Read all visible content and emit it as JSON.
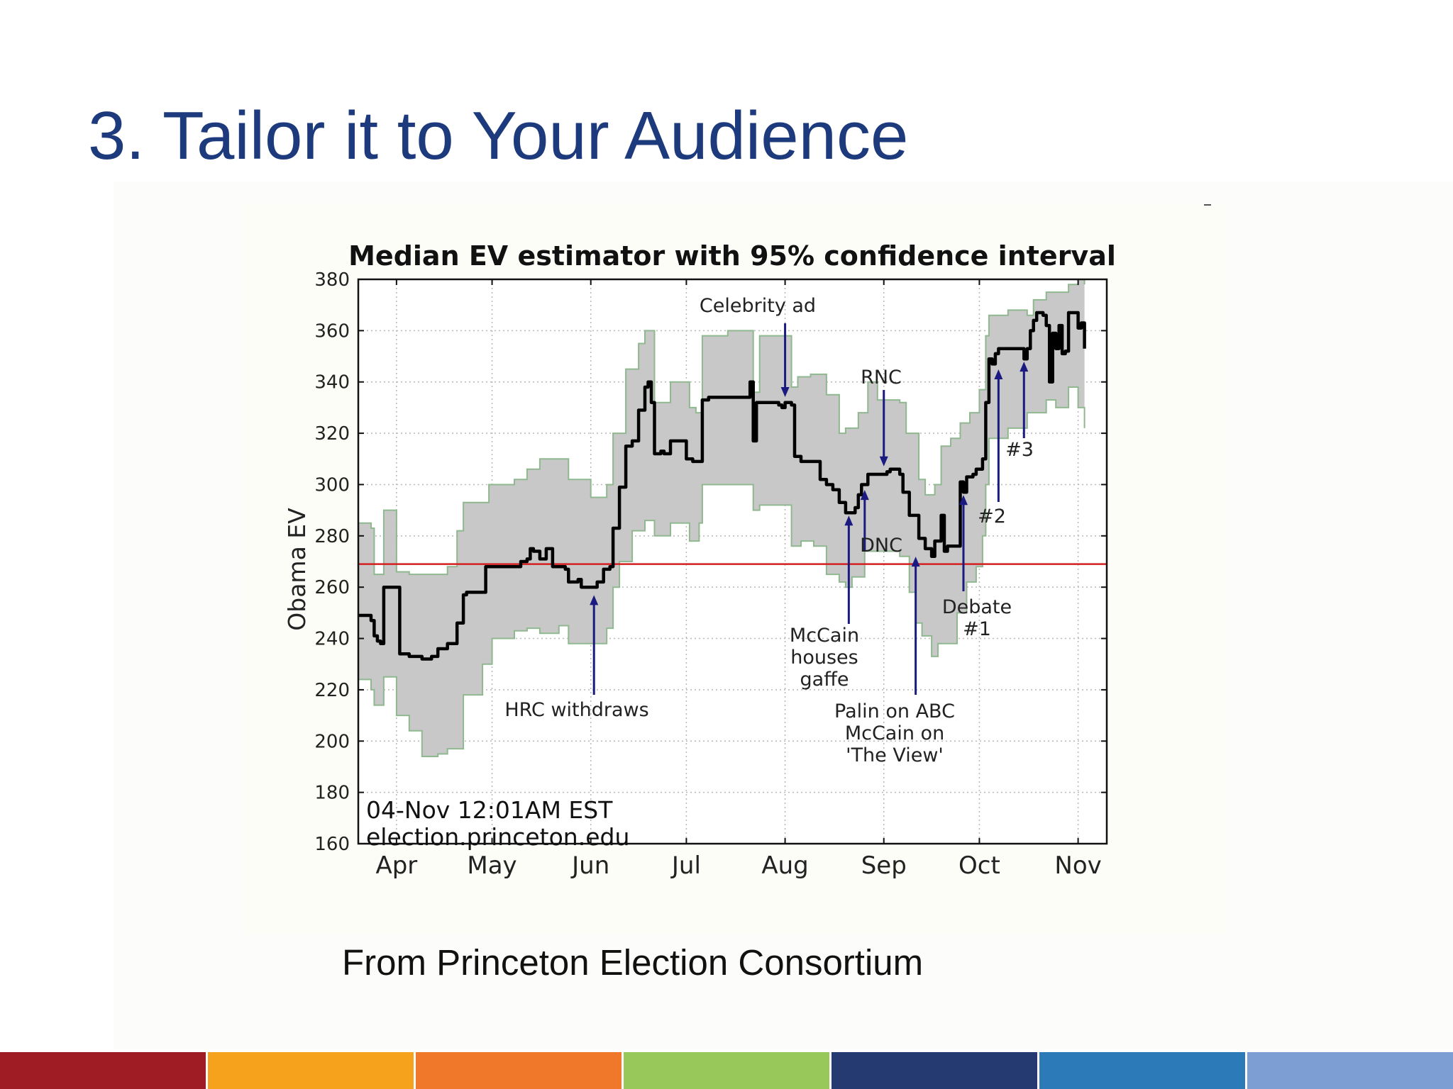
{
  "slide": {
    "title": "3. Tailor it to Your Audience",
    "caption": "From Princeton Election Consortium",
    "footer_colors": [
      "#a01c24",
      "#f6a21c",
      "#f0782a",
      "#98c85a",
      "#263a72",
      "#2c7ab8",
      "#7c9ed2"
    ]
  },
  "chart_data": {
    "type": "line",
    "title": "Median EV estimator with 95% confidence interval",
    "xlabel": "",
    "ylabel": "Obama EV",
    "x_unit": "date (2008)",
    "xlim": [
      "03-20",
      "11-10"
    ],
    "ylim": [
      160,
      380
    ],
    "yticks": [
      160,
      180,
      200,
      220,
      240,
      260,
      280,
      300,
      320,
      340,
      360,
      380
    ],
    "xticks": [
      {
        "date": "04-01",
        "label": "Apr"
      },
      {
        "date": "05-01",
        "label": "May"
      },
      {
        "date": "06-01",
        "label": "Jun"
      },
      {
        "date": "07-01",
        "label": "Jul"
      },
      {
        "date": "08-01",
        "label": "Aug"
      },
      {
        "date": "09-01",
        "label": "Sep"
      },
      {
        "date": "10-01",
        "label": "Oct"
      },
      {
        "date": "11-01",
        "label": "Nov"
      }
    ],
    "grid": true,
    "reference_line": {
      "y": 269,
      "color": "#d42020"
    },
    "colors": {
      "median": "#000000",
      "band_fill": "#c8c8c8",
      "band_edge": "#90b890",
      "arrows": "#1a1a80"
    },
    "median": [
      [
        "03-20",
        249
      ],
      [
        "03-24",
        247
      ],
      [
        "03-25",
        241
      ],
      [
        "03-26",
        239
      ],
      [
        "03-27",
        238
      ],
      [
        "03-28",
        260
      ],
      [
        "04-01",
        260
      ],
      [
        "04-02",
        234
      ],
      [
        "04-05",
        233
      ],
      [
        "04-09",
        232
      ],
      [
        "04-12",
        233
      ],
      [
        "04-14",
        236
      ],
      [
        "04-17",
        238
      ],
      [
        "04-20",
        246
      ],
      [
        "04-22",
        257
      ],
      [
        "04-23",
        258
      ],
      [
        "04-28",
        258
      ],
      [
        "04-29",
        268
      ],
      [
        "05-06",
        268
      ],
      [
        "05-08",
        268
      ],
      [
        "05-10",
        270
      ],
      [
        "05-12",
        271
      ],
      [
        "05-13",
        275
      ],
      [
        "05-14",
        274
      ],
      [
        "05-16",
        271
      ],
      [
        "05-18",
        275
      ],
      [
        "05-19",
        275
      ],
      [
        "05-20",
        268
      ],
      [
        "05-24",
        267
      ],
      [
        "05-25",
        262
      ],
      [
        "05-28",
        263
      ],
      [
        "05-29",
        260
      ],
      [
        "06-01",
        260
      ],
      [
        "06-03",
        262
      ],
      [
        "06-05",
        267
      ],
      [
        "06-07",
        268
      ],
      [
        "06-08",
        283
      ],
      [
        "06-10",
        299
      ],
      [
        "06-12",
        315
      ],
      [
        "06-14",
        317
      ],
      [
        "06-16",
        329
      ],
      [
        "06-18",
        338
      ],
      [
        "06-19",
        340
      ],
      [
        "06-20",
        332
      ],
      [
        "06-21",
        312
      ],
      [
        "06-23",
        313
      ],
      [
        "06-24",
        312
      ],
      [
        "06-26",
        317
      ],
      [
        "06-30",
        317
      ],
      [
        "07-01",
        310
      ],
      [
        "07-03",
        309
      ],
      [
        "07-05",
        309
      ],
      [
        "07-06",
        333
      ],
      [
        "07-08",
        334
      ],
      [
        "07-16",
        334
      ],
      [
        "07-20",
        334
      ],
      [
        "07-21",
        340
      ],
      [
        "07-22",
        317
      ],
      [
        "07-23",
        332
      ],
      [
        "07-28",
        332
      ],
      [
        "07-30",
        331
      ],
      [
        "07-31",
        330
      ],
      [
        "08-01",
        332
      ],
      [
        "08-03",
        331
      ],
      [
        "08-04",
        311
      ],
      [
        "08-06",
        309
      ],
      [
        "08-10",
        309
      ],
      [
        "08-12",
        302
      ],
      [
        "08-14",
        300
      ],
      [
        "08-16",
        298
      ],
      [
        "08-18",
        293
      ],
      [
        "08-20",
        289
      ],
      [
        "08-21",
        289
      ],
      [
        "08-23",
        291
      ],
      [
        "08-24",
        296
      ],
      [
        "08-25",
        300
      ],
      [
        "08-27",
        304
      ],
      [
        "09-02",
        305
      ],
      [
        "09-03",
        306
      ],
      [
        "09-06",
        304
      ],
      [
        "09-07",
        297
      ],
      [
        "09-09",
        288
      ],
      [
        "09-12",
        279
      ],
      [
        "09-14",
        275
      ],
      [
        "09-16",
        272
      ],
      [
        "09-17",
        278
      ],
      [
        "09-19",
        288
      ],
      [
        "09-20",
        274
      ],
      [
        "09-21",
        276
      ],
      [
        "09-24",
        276
      ],
      [
        "09-25",
        301
      ],
      [
        "09-26",
        297
      ],
      [
        "09-27",
        303
      ],
      [
        "09-29",
        304
      ],
      [
        "09-30",
        306
      ],
      [
        "10-02",
        310
      ],
      [
        "10-03",
        332
      ],
      [
        "10-04",
        349
      ],
      [
        "10-05",
        347
      ],
      [
        "10-06",
        351
      ],
      [
        "10-07",
        353
      ],
      [
        "10-14",
        353
      ],
      [
        "10-15",
        349
      ],
      [
        "10-16",
        353
      ],
      [
        "10-17",
        360
      ],
      [
        "10-18",
        364
      ],
      [
        "10-19",
        367
      ],
      [
        "10-21",
        366
      ],
      [
        "10-22",
        362
      ],
      [
        "10-23",
        340
      ],
      [
        "10-24",
        359
      ],
      [
        "10-25",
        353
      ],
      [
        "10-26",
        362
      ],
      [
        "10-27",
        351
      ],
      [
        "10-28",
        352
      ],
      [
        "10-29",
        367
      ],
      [
        "10-31",
        367
      ],
      [
        "11-01",
        361
      ],
      [
        "11-02",
        363
      ],
      [
        "11-03",
        353
      ]
    ],
    "upper_95": [
      [
        "03-20",
        285
      ],
      [
        "03-24",
        283
      ],
      [
        "03-25",
        265
      ],
      [
        "03-28",
        290
      ],
      [
        "03-31",
        290
      ],
      [
        "04-01",
        266
      ],
      [
        "04-05",
        265
      ],
      [
        "04-12",
        265
      ],
      [
        "04-17",
        268
      ],
      [
        "04-20",
        282
      ],
      [
        "04-22",
        293
      ],
      [
        "04-28",
        293
      ],
      [
        "04-30",
        300
      ],
      [
        "05-08",
        302
      ],
      [
        "05-12",
        306
      ],
      [
        "05-16",
        310
      ],
      [
        "05-21",
        310
      ],
      [
        "05-25",
        302
      ],
      [
        "06-01",
        295
      ],
      [
        "06-06",
        300
      ],
      [
        "06-08",
        320
      ],
      [
        "06-12",
        345
      ],
      [
        "06-16",
        355
      ],
      [
        "06-18",
        360
      ],
      [
        "06-19",
        360
      ],
      [
        "06-21",
        332
      ],
      [
        "06-26",
        340
      ],
      [
        "06-30",
        340
      ],
      [
        "07-02",
        330
      ],
      [
        "07-04",
        328
      ],
      [
        "07-06",
        358
      ],
      [
        "07-14",
        360
      ],
      [
        "07-20",
        360
      ],
      [
        "07-22",
        336
      ],
      [
        "07-24",
        358
      ],
      [
        "08-01",
        358
      ],
      [
        "08-03",
        338
      ],
      [
        "08-05",
        342
      ],
      [
        "08-09",
        343
      ],
      [
        "08-14",
        335
      ],
      [
        "08-18",
        320
      ],
      [
        "08-20",
        322
      ],
      [
        "08-24",
        328
      ],
      [
        "08-27",
        340
      ],
      [
        "08-30",
        333
      ],
      [
        "09-06",
        332
      ],
      [
        "09-08",
        320
      ],
      [
        "09-12",
        302
      ],
      [
        "09-14",
        296
      ],
      [
        "09-17",
        300
      ],
      [
        "09-19",
        315
      ],
      [
        "09-22",
        318
      ],
      [
        "09-25",
        324
      ],
      [
        "09-28",
        328
      ],
      [
        "10-01",
        337
      ],
      [
        "10-03",
        358
      ],
      [
        "10-04",
        366
      ],
      [
        "10-10",
        368
      ],
      [
        "10-16",
        366
      ],
      [
        "10-18",
        372
      ],
      [
        "10-22",
        375
      ],
      [
        "10-25",
        375
      ],
      [
        "10-29",
        378
      ],
      [
        "11-01",
        380
      ],
      [
        "11-03",
        378
      ]
    ],
    "lower_95": [
      [
        "03-20",
        224
      ],
      [
        "03-24",
        220
      ],
      [
        "03-25",
        214
      ],
      [
        "03-28",
        225
      ],
      [
        "04-01",
        210
      ],
      [
        "04-05",
        204
      ],
      [
        "04-09",
        194
      ],
      [
        "04-14",
        195
      ],
      [
        "04-17",
        197
      ],
      [
        "04-22",
        218
      ],
      [
        "04-28",
        230
      ],
      [
        "05-01",
        240
      ],
      [
        "05-08",
        243
      ],
      [
        "05-12",
        244
      ],
      [
        "05-16",
        242
      ],
      [
        "05-22",
        245
      ],
      [
        "05-25",
        238
      ],
      [
        "06-01",
        238
      ],
      [
        "06-06",
        244
      ],
      [
        "06-08",
        260
      ],
      [
        "06-10",
        270
      ],
      [
        "06-14",
        282
      ],
      [
        "06-18",
        286
      ],
      [
        "06-21",
        280
      ],
      [
        "06-26",
        285
      ],
      [
        "06-30",
        285
      ],
      [
        "07-02",
        278
      ],
      [
        "07-05",
        285
      ],
      [
        "07-06",
        300
      ],
      [
        "07-16",
        300
      ],
      [
        "07-22",
        290
      ],
      [
        "07-24",
        292
      ],
      [
        "08-01",
        292
      ],
      [
        "08-03",
        276
      ],
      [
        "08-06",
        278
      ],
      [
        "08-10",
        276
      ],
      [
        "08-14",
        265
      ],
      [
        "08-18",
        262
      ],
      [
        "08-20",
        260
      ],
      [
        "08-22",
        264
      ],
      [
        "08-26",
        274
      ],
      [
        "08-30",
        274
      ],
      [
        "09-06",
        272
      ],
      [
        "09-09",
        258
      ],
      [
        "09-11",
        246
      ],
      [
        "09-13",
        241
      ],
      [
        "09-16",
        233
      ],
      [
        "09-18",
        238
      ],
      [
        "09-21",
        238
      ],
      [
        "09-24",
        250
      ],
      [
        "09-27",
        262
      ],
      [
        "09-30",
        268
      ],
      [
        "10-02",
        280
      ],
      [
        "10-03",
        300
      ],
      [
        "10-04",
        318
      ],
      [
        "10-10",
        322
      ],
      [
        "10-16",
        328
      ],
      [
        "10-22",
        333
      ],
      [
        "10-25",
        330
      ],
      [
        "10-29",
        338
      ],
      [
        "11-01",
        330
      ],
      [
        "11-03",
        322
      ]
    ],
    "annotations": [
      {
        "text": "Celebrity ad",
        "direction": "down",
        "date": "08-01",
        "y_tip": 333
      },
      {
        "text": "RNC",
        "direction": "down",
        "date": "09-01",
        "y_tip": 306
      },
      {
        "text": "DNC",
        "direction": "up",
        "date": "08-26",
        "y_tip": 299
      },
      {
        "text": "McCain\nhouses\ngaffe",
        "direction": "up",
        "date": "08-21",
        "y_tip": 289
      },
      {
        "text": "HRC withdraws",
        "direction": "up",
        "date": "06-02",
        "y_tip": 258
      },
      {
        "text": "Palin on ABC\nMcCain on\n'The View'",
        "direction": "up",
        "date": "09-11",
        "y_tip": 273
      },
      {
        "text": "Debate\n#1",
        "direction": "up",
        "date": "09-26",
        "y_tip": 297
      },
      {
        "text": "#2",
        "direction": "up",
        "date": "10-07",
        "y_tip": 346
      },
      {
        "text": "#3",
        "direction": "up",
        "date": "10-15",
        "y_tip": 349
      }
    ],
    "stamp": [
      "04-Nov 12:01AM EST",
      "election.princeton.edu"
    ]
  }
}
